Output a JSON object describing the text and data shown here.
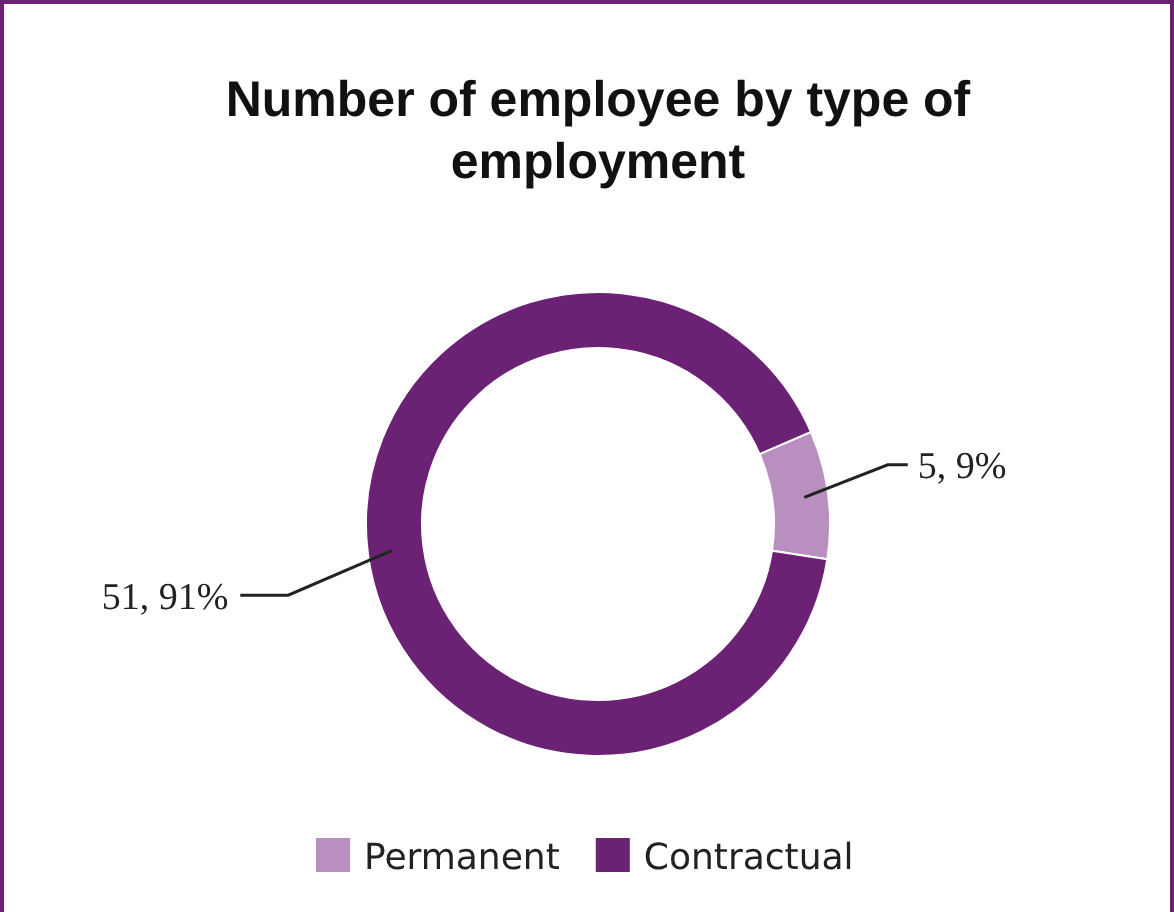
{
  "chart_data": {
    "type": "donut",
    "title": "Number of employee by type of employment",
    "categories": [
      "Permanent",
      "Contractual"
    ],
    "values": [
      5,
      51
    ],
    "colors": [
      "#b98fc0",
      "#6b2275"
    ],
    "value_labels": [
      "5, 9%",
      "51, 91%"
    ],
    "legend": "bottom"
  }
}
